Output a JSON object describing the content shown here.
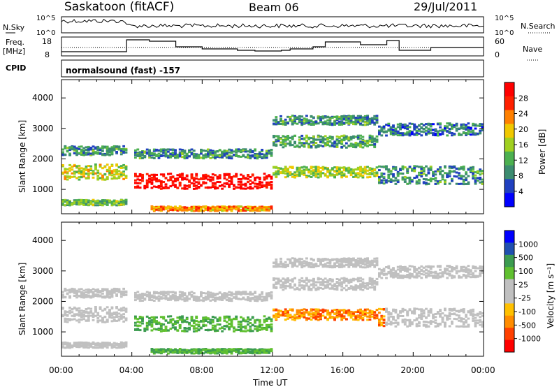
{
  "header": {
    "station": "Saskatoon (fitACF)",
    "beam": "Beam 06",
    "date": "29/Jul/2011"
  },
  "status_panels": {
    "nsky_label": "N.Sky",
    "nsky_ticks": [
      "10^5",
      "10^0"
    ],
    "nsearch_label": "N.Search",
    "nsearch_ticks": [
      "10^5",
      "10^0"
    ],
    "freq_label_1": "Freq.",
    "freq_label_2": "[MHz]",
    "freq_ticks": [
      "18",
      "8"
    ],
    "nave_label": "Nave",
    "nave_ticks": [
      "60",
      "0"
    ],
    "cpid_label": "CPID",
    "cpid_text": "normalsound (fast) -157"
  },
  "colors": {
    "power_scale": [
      "#0000ff",
      "#2040c0",
      "#3c8c70",
      "#4cb050",
      "#a0d020",
      "#f0c800",
      "#ff8000",
      "#ff2000",
      "#ff0000"
    ],
    "velocity_scale": [
      "#ff0000",
      "#ff4000",
      "#ff8c00",
      "#ffc000",
      "#c0c0c0",
      "#c0c0c0",
      "#60c030",
      "#3c9c50",
      "#2050b0",
      "#0000ff"
    ]
  },
  "chart_data": [
    {
      "type": "heatmap",
      "name": "power",
      "ylabel": "Slant Range [km]",
      "ylim": [
        200,
        4600
      ],
      "yticks": [
        "1000",
        "2000",
        "3000",
        "4000"
      ],
      "xlim": [
        0,
        24
      ],
      "colorbar_label": "Power [dB]",
      "colorbar_ticks": [
        "4",
        "8",
        "12",
        "16",
        "20",
        "24",
        "28"
      ],
      "colorbar_range": [
        0,
        32
      ],
      "data_gap_hours": [
        3.6,
        4.0
      ]
    },
    {
      "type": "heatmap",
      "name": "velocity",
      "ylabel": "Slant Range [km]",
      "ylim": [
        200,
        4600
      ],
      "yticks": [
        "1000",
        "2000",
        "3000",
        "4000"
      ],
      "xlim": [
        0,
        24
      ],
      "colorbar_label": "Velocity [m s⁻¹]",
      "colorbar_ticks": [
        "1000",
        "500",
        "100",
        "25",
        "-25",
        "-100",
        "-500",
        "-1000"
      ],
      "data_gap_hours": [
        3.6,
        4.0
      ]
    }
  ],
  "time_axis": {
    "label": "Time UT",
    "ticks": [
      "00:00",
      "04:00",
      "08:00",
      "12:00",
      "16:00",
      "20:00",
      "00:00"
    ]
  }
}
